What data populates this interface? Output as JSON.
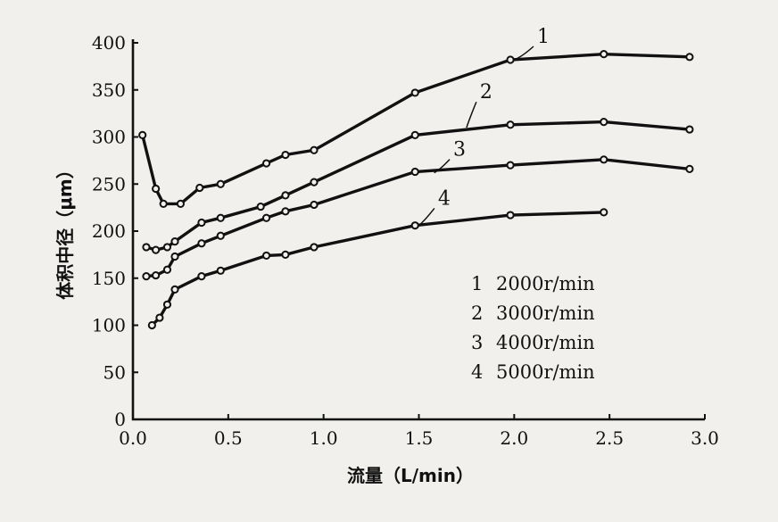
{
  "chart_data": {
    "type": "line",
    "title": "",
    "xlabel": "流量（L/min）",
    "ylabel": "体积中径（μm）",
    "xlim": [
      0,
      3.0
    ],
    "ylim": [
      0,
      400
    ],
    "x_ticks": [
      "0.0",
      "0.5",
      "1.0",
      "1.5",
      "2.0",
      "2.5",
      "3.0"
    ],
    "y_ticks": [
      "0",
      "50",
      "100",
      "150",
      "200",
      "250",
      "300",
      "350",
      "400"
    ],
    "grid": false,
    "legend": {
      "placement": "bottom-right",
      "entries": [
        {
          "number": "1",
          "text": "2000r/min"
        },
        {
          "number": "2",
          "text": "3000r/min"
        },
        {
          "number": "3",
          "text": "4000r/min"
        },
        {
          "number": "4",
          "text": "5000r/min"
        }
      ]
    },
    "series": [
      {
        "label": "1",
        "label_at": [
          2.12,
          400
        ],
        "leader_to": [
          2.0,
          382
        ],
        "points": [
          [
            0.05,
            302
          ],
          [
            0.12,
            245
          ],
          [
            0.16,
            229
          ],
          [
            0.25,
            229
          ],
          [
            0.35,
            246
          ],
          [
            0.46,
            250
          ],
          [
            0.7,
            272
          ],
          [
            0.8,
            281
          ],
          [
            0.95,
            286
          ],
          [
            1.48,
            347
          ],
          [
            1.98,
            382
          ],
          [
            2.47,
            388
          ],
          [
            2.92,
            385
          ]
        ]
      },
      {
        "label": "2",
        "label_at": [
          1.82,
          341
        ],
        "leader_to": [
          1.75,
          310
        ],
        "points": [
          [
            0.07,
            183
          ],
          [
            0.12,
            180
          ],
          [
            0.18,
            183
          ],
          [
            0.22,
            189
          ],
          [
            0.36,
            209
          ],
          [
            0.46,
            214
          ],
          [
            0.67,
            226
          ],
          [
            0.8,
            238
          ],
          [
            0.95,
            252
          ],
          [
            1.48,
            302
          ],
          [
            1.98,
            313
          ],
          [
            2.47,
            316
          ],
          [
            2.92,
            308
          ]
        ]
      },
      {
        "label": "3",
        "label_at": [
          1.68,
          280
        ],
        "leader_to": [
          1.58,
          262
        ],
        "points": [
          [
            0.07,
            152
          ],
          [
            0.12,
            153
          ],
          [
            0.18,
            159
          ],
          [
            0.22,
            173
          ],
          [
            0.36,
            187
          ],
          [
            0.46,
            195
          ],
          [
            0.7,
            214
          ],
          [
            0.8,
            221
          ],
          [
            0.95,
            228
          ],
          [
            1.48,
            263
          ],
          [
            1.98,
            270
          ],
          [
            2.47,
            276
          ],
          [
            2.92,
            266
          ]
        ]
      },
      {
        "label": "4",
        "label_at": [
          1.6,
          228
        ],
        "leader_to": [
          1.5,
          206
        ],
        "points": [
          [
            0.1,
            100
          ],
          [
            0.14,
            108
          ],
          [
            0.18,
            122
          ],
          [
            0.22,
            138
          ],
          [
            0.36,
            152
          ],
          [
            0.46,
            158
          ],
          [
            0.7,
            174
          ],
          [
            0.8,
            175
          ],
          [
            0.95,
            183
          ],
          [
            1.48,
            206
          ],
          [
            1.98,
            217
          ],
          [
            2.47,
            220
          ]
        ]
      }
    ]
  }
}
